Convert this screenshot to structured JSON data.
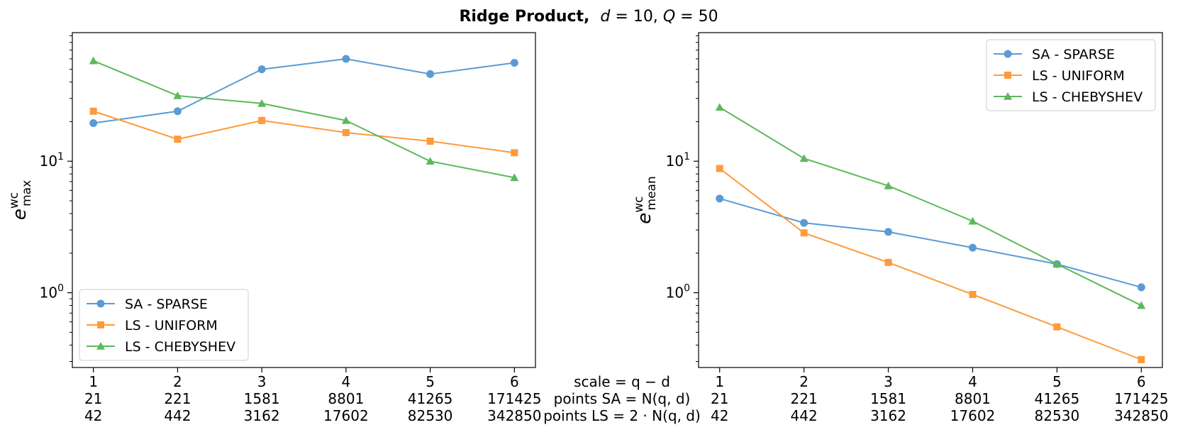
{
  "title": {
    "bold_part": "Ridge Product,",
    "d_sym": "d",
    "d_val": " = 10, ",
    "q_sym": "Q",
    "q_val": " = 50"
  },
  "scale_labels": [
    "1",
    "2",
    "3",
    "4",
    "5",
    "6"
  ],
  "points_sa": [
    "21",
    "221",
    "1581",
    "8801",
    "41265",
    "171425"
  ],
  "points_ls": [
    "42",
    "442",
    "3162",
    "17602",
    "82530",
    "342850"
  ],
  "center_labels": {
    "scale": "scale = q − d",
    "points_sa": "points SA = N(q, d)",
    "points_ls": "points LS = 2 · N(q, d)"
  },
  "colors": {
    "sa_sparse": "#5b9bd5",
    "ls_uniform": "#ff9a3c",
    "ls_chebyshev": "#5cb85c"
  },
  "chart_data": [
    {
      "type": "line",
      "yscale": "log",
      "ylabel": "e^wc_max",
      "ylabel_base": "e",
      "ylabel_sup": "wc",
      "ylabel_sub": "max",
      "x": [
        1,
        2,
        3,
        4,
        5,
        6
      ],
      "xlim": [
        0.75,
        6.25
      ],
      "ylim": [
        0.27,
        95
      ],
      "yticks": [
        {
          "value": 1,
          "base": "10",
          "exp": "0"
        },
        {
          "value": 10,
          "base": "10",
          "exp": "1"
        }
      ],
      "legend_position": "lower-left",
      "series": [
        {
          "name": "SA - SPARSE",
          "marker": "circle",
          "values": [
            19.5,
            24,
            50,
            60,
            46,
            56
          ]
        },
        {
          "name": "LS - UNIFORM",
          "marker": "square",
          "values": [
            24,
            14.7,
            20.4,
            16.5,
            14.2,
            11.6
          ]
        },
        {
          "name": "LS - CHEBYSHEV",
          "marker": "triangle",
          "values": [
            58,
            31.5,
            27.5,
            20.4,
            10,
            7.5
          ]
        }
      ]
    },
    {
      "type": "line",
      "yscale": "log",
      "ylabel": "e^wc_mean",
      "ylabel_base": "e",
      "ylabel_sup": "wc",
      "ylabel_sub": "mean",
      "x": [
        1,
        2,
        3,
        4,
        5,
        6
      ],
      "xlim": [
        0.75,
        6.25
      ],
      "ylim": [
        0.27,
        95
      ],
      "yticks": [
        {
          "value": 1,
          "base": "10",
          "exp": "0"
        },
        {
          "value": 10,
          "base": "10",
          "exp": "1"
        }
      ],
      "legend_position": "upper-right",
      "series": [
        {
          "name": "SA - SPARSE",
          "marker": "circle",
          "values": [
            5.2,
            3.4,
            2.9,
            2.2,
            1.65,
            1.1
          ]
        },
        {
          "name": "LS - UNIFORM",
          "marker": "square",
          "values": [
            8.8,
            2.85,
            1.7,
            0.97,
            0.55,
            0.31
          ]
        },
        {
          "name": "LS - CHEBYSHEV",
          "marker": "triangle",
          "values": [
            25.7,
            10.5,
            6.5,
            3.5,
            1.65,
            0.8
          ]
        }
      ]
    }
  ]
}
